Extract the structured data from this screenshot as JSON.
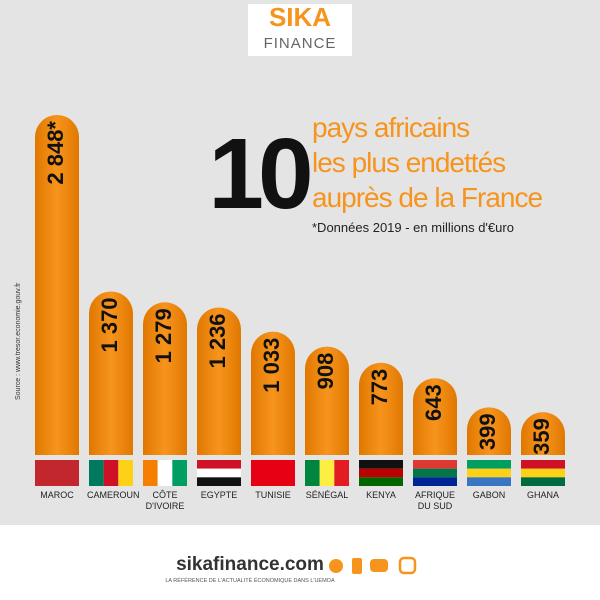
{
  "logo": {
    "brand": "SIKA",
    "sub": "FINANCE"
  },
  "chart_data": {
    "type": "bar",
    "title_number": "10",
    "title_lines": [
      "pays africains",
      "les plus endettés",
      "auprès de la France"
    ],
    "subtitle": "*Données 2019 - en millions d'€uro",
    "source": "Source : www.tresor.economie.gouv.fr",
    "categories": [
      "MAROC",
      "CAMEROUN",
      "CÔTE D'IVOIRE",
      "EGYPTE",
      "TUNISIE",
      "SÉNÉGAL",
      "KENYA",
      "AFRIQUE DU SUD",
      "GABON",
      "GHANA"
    ],
    "values": [
      2848,
      1370,
      1279,
      1236,
      1033,
      908,
      773,
      643,
      399,
      359
    ],
    "value_labels": [
      "2 848*",
      "1 370",
      "1 279",
      "1 236",
      "1 033",
      "908",
      "773",
      "643",
      "399",
      "359"
    ],
    "color": "#f7941d"
  },
  "footer": {
    "site": "sikafinance.com",
    "tagline": "LA RÉFÉRENCE DE L'ACTUALITÉ ÉCONOMIQUE DANS L'UEMOA"
  }
}
